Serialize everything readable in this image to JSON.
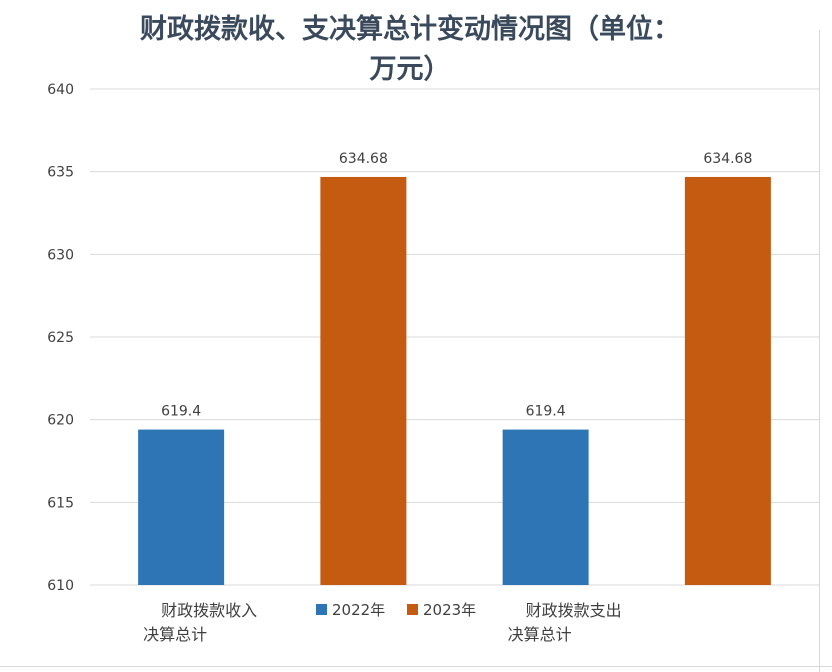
{
  "chart_data": {
    "type": "bar",
    "title": "财政拨款收、支决算总计变动情况图（单位：万元）",
    "title_lines": [
      "财政拨款收、支决算总计变动情况图（单位：",
      "万元）"
    ],
    "categories": [
      {
        "lines": [
          "财政拨款收入",
          "决算总计"
        ]
      },
      {
        "lines": [
          "财政拨款支出",
          "决算总计"
        ]
      }
    ],
    "series": [
      {
        "name": "2022年",
        "color": "#2e75b6",
        "values": [
          619.4,
          619.4
        ],
        "labels": [
          "619.4",
          "619.4"
        ]
      },
      {
        "name": "2023年",
        "color": "#c55a11",
        "values": [
          634.68,
          634.68
        ],
        "labels": [
          "634.68",
          "634.68"
        ]
      }
    ],
    "ylim": [
      610,
      640
    ],
    "yticks": [
      "610",
      "615",
      "620",
      "625",
      "630",
      "635",
      "640"
    ],
    "grid": true,
    "legend": "bottom-center"
  }
}
